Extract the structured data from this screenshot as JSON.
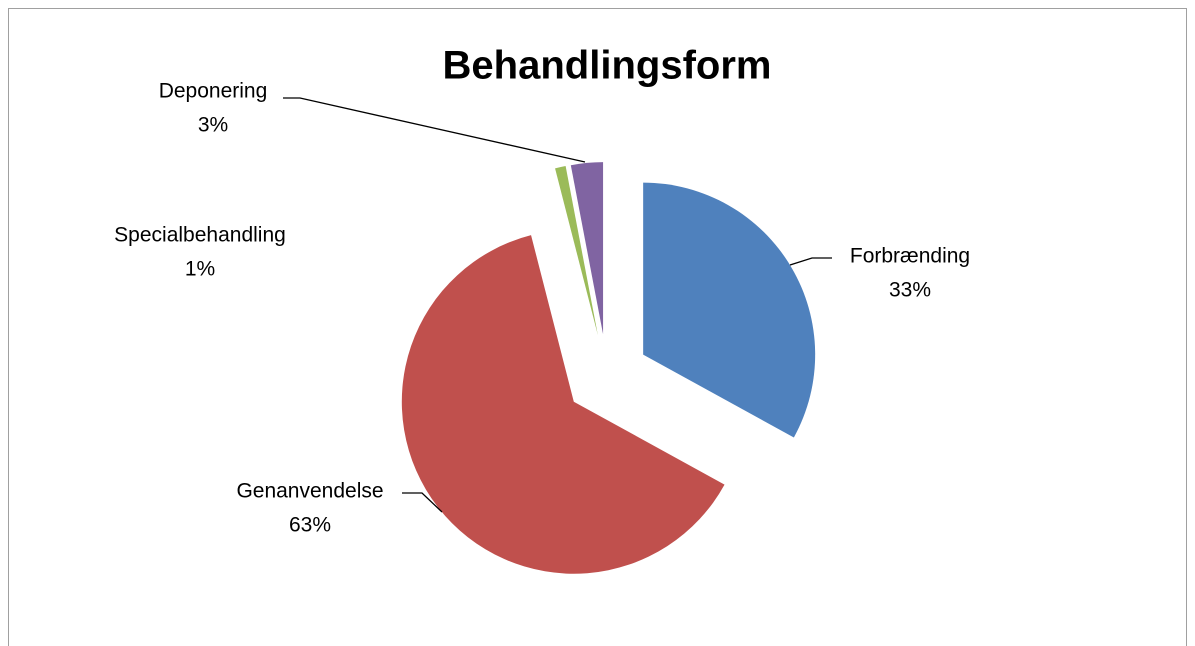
{
  "chart_data": {
    "type": "pie",
    "title": "Behandlingsform",
    "categories": [
      "Forbrænding",
      "Genanvendelse",
      "Specialbehandling",
      "Deponering"
    ],
    "values": [
      33,
      63,
      1,
      3
    ],
    "value_labels": [
      "33%",
      "63%",
      "1%",
      "3%"
    ],
    "colors": [
      "#4f81bd",
      "#c0504d",
      "#9bbb59",
      "#8064a2"
    ]
  }
}
